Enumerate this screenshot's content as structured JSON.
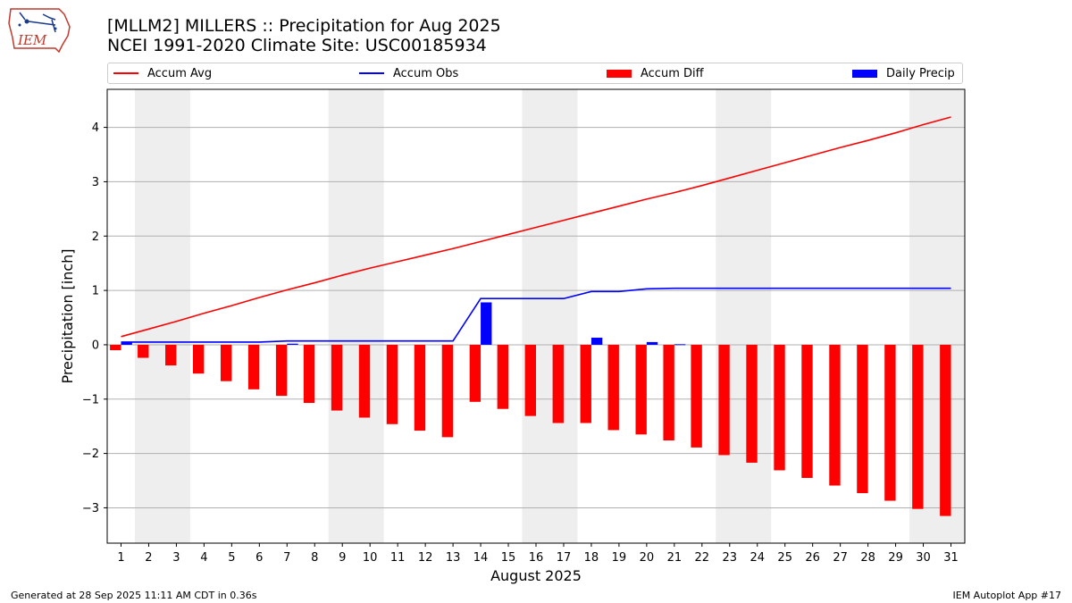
{
  "header": {
    "title_line1": "[MLLM2] MILLERS :: Precipitation for Aug 2025",
    "title_line2": "NCEI 1991-2020 Climate Site: USC00185934",
    "logo_text": "IEM"
  },
  "legend": {
    "items": [
      {
        "label": "Accum Avg",
        "kind": "line",
        "color": "#ff0000"
      },
      {
        "label": "Accum Obs",
        "kind": "line",
        "color": "#0000ff"
      },
      {
        "label": "Accum Diff",
        "kind": "bar",
        "color": "#ff0000"
      },
      {
        "label": "Daily Precip",
        "kind": "bar",
        "color": "#0000ff"
      }
    ]
  },
  "footer": {
    "left": "Generated at 28 Sep 2025 11:11 AM CDT in 0.36s",
    "right": "IEM Autoplot App #17"
  },
  "chart_data": {
    "type": "bar",
    "xlabel": "August 2025",
    "ylabel": "Precipitation [inch]",
    "ylim": [
      -3.65,
      4.7
    ],
    "yticks": [
      -3,
      -2,
      -1,
      0,
      1,
      2,
      3,
      4
    ],
    "ytick_labels": [
      "−3",
      "−2",
      "−1",
      "0",
      "1",
      "2",
      "3",
      "4"
    ],
    "grid": "horizontal",
    "legend_placement": "top",
    "x": [
      1,
      2,
      3,
      4,
      5,
      6,
      7,
      8,
      9,
      10,
      11,
      12,
      13,
      14,
      15,
      16,
      17,
      18,
      19,
      20,
      21,
      22,
      23,
      24,
      25,
      26,
      27,
      28,
      29,
      30,
      31
    ],
    "weekend_shading": [
      [
        2,
        3
      ],
      [
        9,
        10
      ],
      [
        16,
        17
      ],
      [
        23,
        24
      ],
      [
        30,
        31
      ]
    ],
    "series": [
      {
        "name": "Accum Avg",
        "kind": "line",
        "color": "#ff0000",
        "values": [
          0.15,
          0.29,
          0.43,
          0.58,
          0.72,
          0.87,
          1.01,
          1.14,
          1.28,
          1.41,
          1.53,
          1.65,
          1.77,
          1.9,
          2.03,
          2.16,
          2.29,
          2.42,
          2.55,
          2.68,
          2.8,
          2.93,
          3.07,
          3.21,
          3.35,
          3.49,
          3.63,
          3.76,
          3.9,
          4.05,
          4.19
        ]
      },
      {
        "name": "Accum Obs",
        "kind": "line",
        "color": "#0000ff",
        "values": [
          0.05,
          0.05,
          0.05,
          0.05,
          0.05,
          0.05,
          0.07,
          0.07,
          0.07,
          0.07,
          0.07,
          0.07,
          0.07,
          0.85,
          0.85,
          0.85,
          0.85,
          0.98,
          0.98,
          1.03,
          1.04,
          1.04,
          1.04,
          1.04,
          1.04,
          1.04,
          1.04,
          1.04,
          1.04,
          1.04,
          1.04
        ]
      },
      {
        "name": "Accum Diff",
        "kind": "bar",
        "color": "#ff0000",
        "values": [
          -0.1,
          -0.24,
          -0.38,
          -0.53,
          -0.67,
          -0.82,
          -0.94,
          -1.07,
          -1.21,
          -1.34,
          -1.46,
          -1.58,
          -1.7,
          -1.05,
          -1.18,
          -1.31,
          -1.44,
          -1.44,
          -1.57,
          -1.65,
          -1.76,
          -1.89,
          -2.03,
          -2.17,
          -2.31,
          -2.45,
          -2.59,
          -2.73,
          -2.87,
          -3.02,
          -3.15
        ]
      },
      {
        "name": "Daily Precip",
        "kind": "bar",
        "color": "#0000ff",
        "values": [
          0.05,
          0,
          0,
          0,
          0,
          0,
          0.02,
          0,
          0,
          0,
          0,
          0,
          0,
          0.78,
          0,
          0,
          0,
          0.13,
          0,
          0.05,
          0.01,
          0,
          0,
          0,
          0,
          0,
          0,
          0,
          0,
          0,
          0
        ]
      }
    ]
  }
}
